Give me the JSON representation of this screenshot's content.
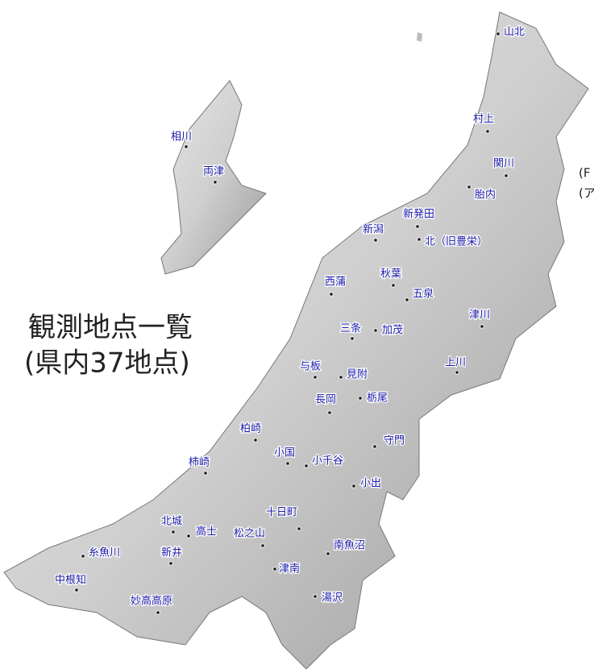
{
  "title": "観測地点一覧",
  "subtitle": "(県内37地点)",
  "edge_texts": [
    "(F",
    "(ア"
  ],
  "stations": [
    "山北",
    "村上",
    "関川",
    "胎内",
    "新発田",
    "新潟",
    "北（旧豊栄）",
    "西蒲",
    "秋葉",
    "五泉",
    "津川",
    "三条",
    "加茂",
    "上川",
    "与板",
    "見附",
    "長岡",
    "栃尾",
    "柏崎",
    "小国",
    "小千谷",
    "守門",
    "柿崎",
    "小出",
    "十日町",
    "北城",
    "高士",
    "松之山",
    "南魚沼",
    "糸魚川",
    "新井",
    "津南",
    "中根知",
    "妙高高原",
    "湯沢",
    "相川",
    "両津"
  ]
}
